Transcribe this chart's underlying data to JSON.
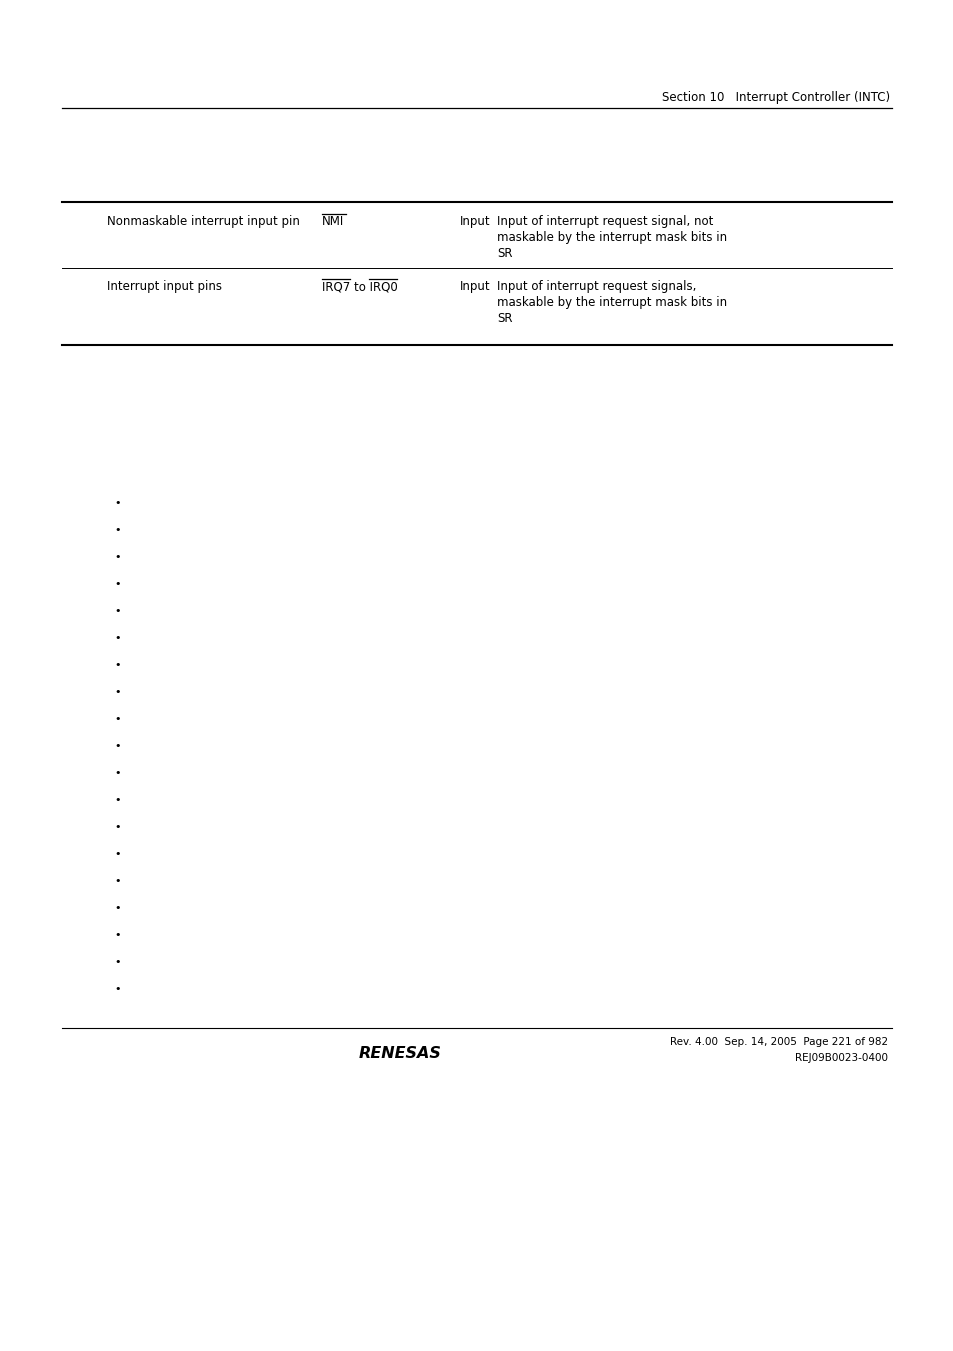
{
  "header_text": "Section 10   Interrupt Controller (INTC)",
  "table_rows": [
    {
      "col1": "Nonmaskable interrupt input pin",
      "col2": "NMI",
      "col3": "Input",
      "col4_lines": [
        "Input of interrupt request signal, not",
        "maskable by the interrupt mask bits in",
        "SR"
      ]
    },
    {
      "col1": "Interrupt input pins",
      "col2": "IRQ7 to IRQ0",
      "col3": "Input",
      "col4_lines": [
        "Input of interrupt request signals,",
        "maskable by the interrupt mask bits in",
        "SR"
      ]
    }
  ],
  "footer_text1": "Rev. 4.00  Sep. 14, 2005  Page 221 of 982",
  "footer_text2": "REJ09B0023-0400",
  "bg_color": "#ffffff",
  "text_color": "#000000"
}
